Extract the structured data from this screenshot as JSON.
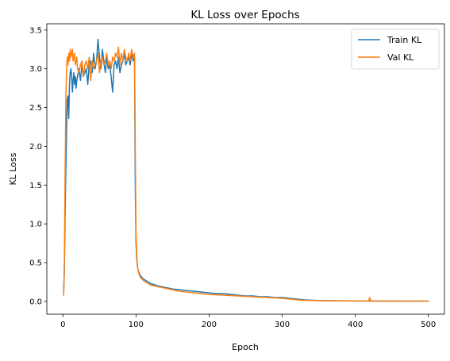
{
  "chart_data": {
    "type": "line",
    "title": "KL Loss over Epochs",
    "xlabel": "Epoch",
    "ylabel": "KL Loss",
    "xlim": [
      -22,
      522
    ],
    "ylim": [
      -0.165,
      3.58
    ],
    "xticks": [
      0,
      100,
      200,
      300,
      400,
      500
    ],
    "yticks": [
      0.0,
      0.5,
      1.0,
      1.5,
      2.0,
      2.5,
      3.0,
      3.5
    ],
    "ytick_labels": [
      "0.0",
      "0.5",
      "1.0",
      "1.5",
      "2.0",
      "2.5",
      "3.0",
      "3.5"
    ],
    "grid": false,
    "legend": "top-right",
    "series": [
      {
        "name": "Train KL",
        "color": "#1f77b4",
        "x": [
          1,
          2,
          3,
          4,
          5,
          6,
          7,
          8,
          9,
          10,
          11,
          12,
          13,
          14,
          15,
          16,
          17,
          18,
          19,
          20,
          22,
          24,
          26,
          28,
          30,
          32,
          34,
          36,
          38,
          40,
          42,
          44,
          46,
          48,
          50,
          52,
          54,
          56,
          58,
          60,
          62,
          64,
          66,
          68,
          70,
          72,
          74,
          76,
          78,
          80,
          82,
          84,
          86,
          88,
          90,
          92,
          94,
          96,
          98,
          99,
          100,
          101,
          102,
          103,
          104,
          105,
          107,
          110,
          115,
          120,
          130,
          140,
          150,
          160,
          170,
          180,
          190,
          200,
          210,
          220,
          230,
          240,
          250,
          260,
          270,
          280,
          290,
          300,
          310,
          320,
          330,
          340,
          350,
          360,
          380,
          400,
          420,
          440,
          460,
          480,
          500
        ],
        "y": [
          0.1,
          0.4,
          1.1,
          1.7,
          2.2,
          2.6,
          2.65,
          2.36,
          2.8,
          2.95,
          3.0,
          2.9,
          2.7,
          2.85,
          2.95,
          2.8,
          2.9,
          2.75,
          2.85,
          2.9,
          3.0,
          2.85,
          3.05,
          2.9,
          2.95,
          3.0,
          2.8,
          3.05,
          3.1,
          2.95,
          3.2,
          3.0,
          3.1,
          3.38,
          3.15,
          3.0,
          3.25,
          3.1,
          2.95,
          3.15,
          3.0,
          3.05,
          2.9,
          2.7,
          3.05,
          3.1,
          3.0,
          3.15,
          2.95,
          3.05,
          3.1,
          3.2,
          3.05,
          3.1,
          3.15,
          3.05,
          3.2,
          3.1,
          3.15,
          1.5,
          0.75,
          0.55,
          0.45,
          0.4,
          0.38,
          0.35,
          0.32,
          0.29,
          0.26,
          0.23,
          0.2,
          0.18,
          0.16,
          0.15,
          0.14,
          0.13,
          0.12,
          0.11,
          0.1,
          0.1,
          0.09,
          0.08,
          0.07,
          0.07,
          0.06,
          0.06,
          0.05,
          0.05,
          0.04,
          0.03,
          0.02,
          0.015,
          0.012,
          0.01,
          0.008,
          0.006,
          0.005,
          0.005,
          0.004,
          0.004,
          0.004
        ]
      },
      {
        "name": "Val KL",
        "color": "#ff7f0e",
        "x": [
          1,
          2,
          3,
          4,
          5,
          6,
          7,
          8,
          9,
          10,
          11,
          12,
          13,
          14,
          15,
          16,
          17,
          18,
          19,
          20,
          22,
          24,
          26,
          28,
          30,
          32,
          34,
          36,
          38,
          40,
          42,
          44,
          46,
          48,
          50,
          52,
          54,
          56,
          58,
          60,
          62,
          64,
          66,
          68,
          70,
          72,
          74,
          76,
          78,
          80,
          82,
          84,
          86,
          88,
          90,
          92,
          94,
          96,
          98,
          99,
          100,
          101,
          102,
          103,
          104,
          105,
          107,
          110,
          115,
          120,
          130,
          140,
          150,
          160,
          170,
          180,
          190,
          200,
          210,
          220,
          230,
          240,
          250,
          260,
          270,
          280,
          290,
          300,
          310,
          320,
          330,
          340,
          350,
          360,
          380,
          400,
          418,
          419,
          420,
          421,
          422,
          440,
          460,
          480,
          500
        ],
        "y": [
          0.08,
          0.5,
          1.6,
          2.6,
          3.0,
          3.15,
          3.05,
          3.2,
          3.1,
          3.25,
          3.15,
          3.2,
          3.25,
          3.1,
          3.15,
          3.2,
          3.05,
          3.1,
          3.15,
          3.0,
          2.95,
          3.05,
          3.1,
          2.9,
          3.05,
          3.1,
          3.0,
          3.15,
          2.85,
          3.1,
          3.0,
          3.05,
          3.1,
          3.2,
          2.95,
          3.1,
          3.15,
          3.05,
          3.1,
          3.2,
          3.05,
          3.1,
          3.0,
          3.15,
          3.1,
          3.2,
          3.15,
          3.28,
          3.05,
          3.2,
          3.1,
          3.25,
          3.15,
          3.1,
          3.2,
          3.1,
          3.25,
          3.15,
          3.2,
          2.0,
          0.9,
          0.6,
          0.45,
          0.4,
          0.36,
          0.33,
          0.3,
          0.27,
          0.24,
          0.21,
          0.19,
          0.17,
          0.15,
          0.13,
          0.12,
          0.11,
          0.1,
          0.09,
          0.085,
          0.08,
          0.075,
          0.07,
          0.065,
          0.06,
          0.055,
          0.05,
          0.045,
          0.04,
          0.03,
          0.02,
          0.015,
          0.012,
          0.01,
          0.008,
          0.006,
          0.005,
          0.005,
          0.03,
          0.05,
          0.01,
          0.004,
          0.004,
          0.004,
          0.004,
          0.004
        ]
      }
    ]
  }
}
